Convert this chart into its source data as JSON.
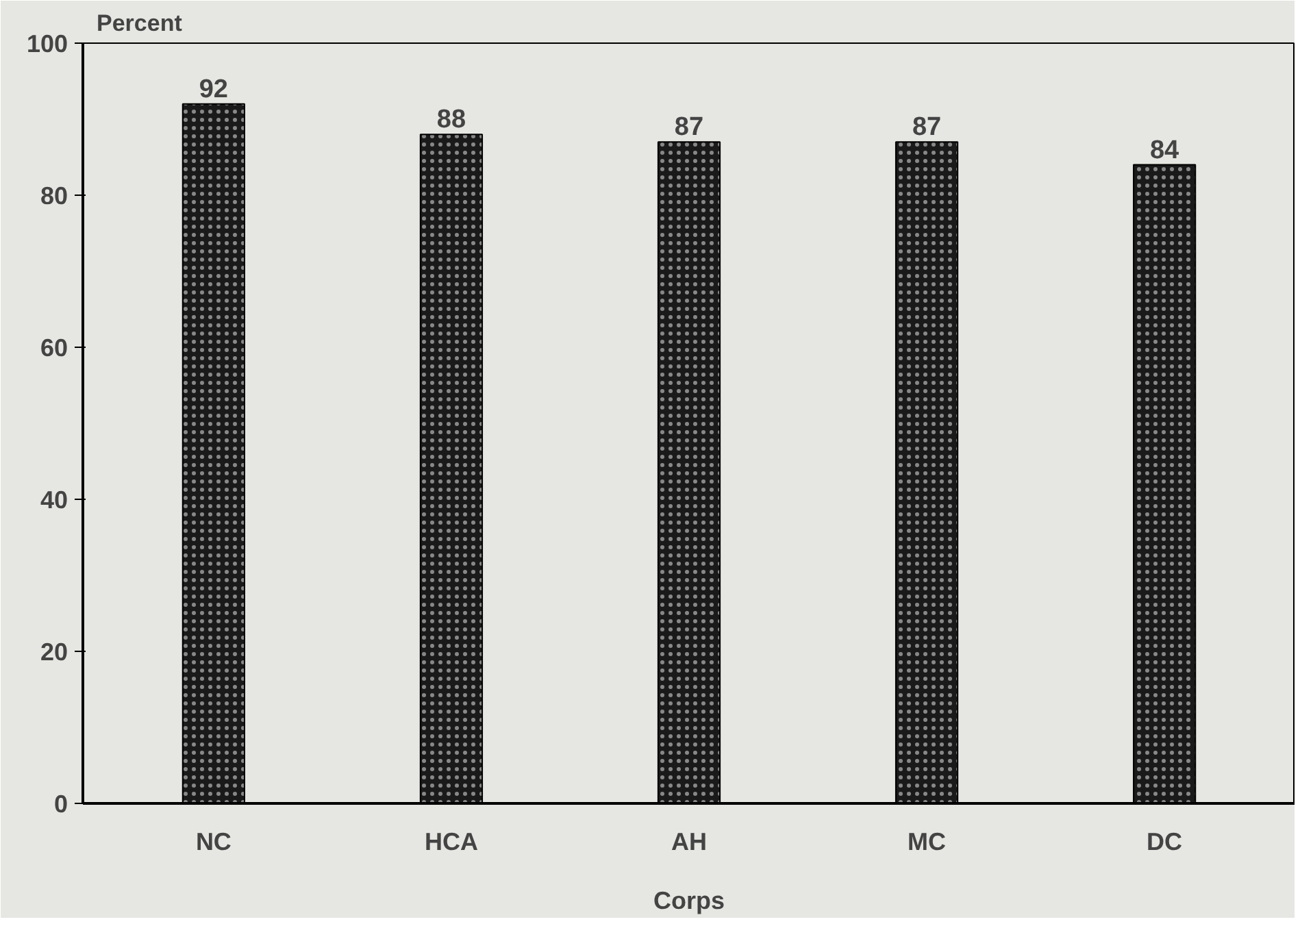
{
  "chart_data": {
    "type": "bar",
    "xlabel": "Corps",
    "ylabel": "Percent",
    "categories": [
      "NC",
      "HCA",
      "AH",
      "MC",
      "DC"
    ],
    "values": [
      92,
      88,
      87,
      87,
      84
    ],
    "color": "#1a1a1a",
    "ylim": [
      0,
      100
    ],
    "yticks": [
      0,
      20,
      40,
      60,
      80,
      100
    ],
    "data_labels": true,
    "grid": false
  }
}
